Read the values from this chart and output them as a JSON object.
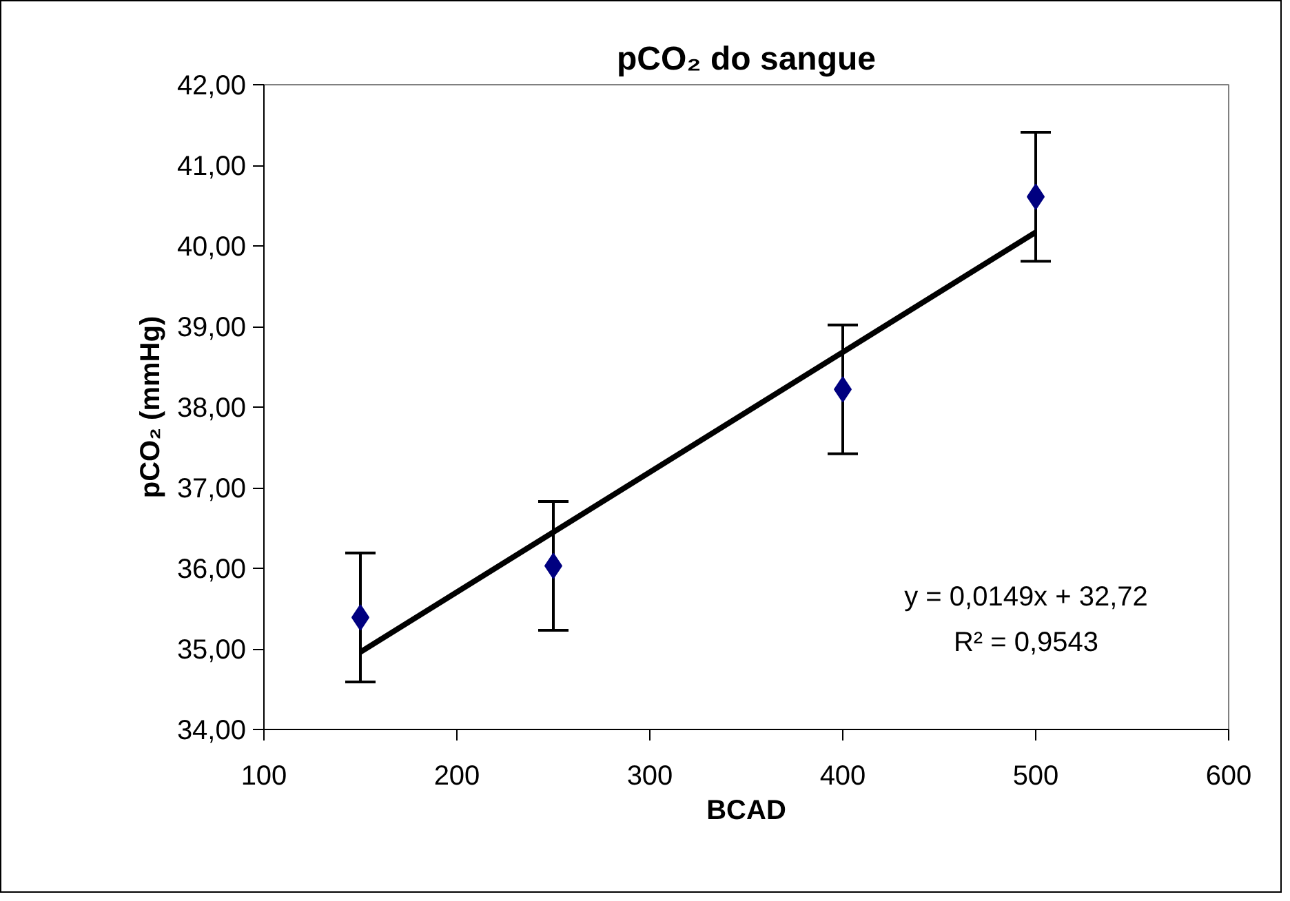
{
  "chart_data": {
    "type": "scatter",
    "title": "pCO₂ do sangue",
    "xlabel": "BCAD",
    "ylabel": "pCO₂ (mmHg)",
    "x": [
      150,
      250,
      400,
      500
    ],
    "series": [
      {
        "color": "#000080",
        "values": [
          35.39,
          36.03,
          38.22,
          40.61
        ],
        "errors": [
          0.8,
          0.8,
          0.8,
          0.8
        ],
        "marker": "diamond"
      },
      {
        "type": "line",
        "color": "#000000",
        "x": [
          150,
          500
        ],
        "values": [
          34.96,
          40.17
        ],
        "line_style": "solid"
      }
    ],
    "annotations": [
      "y = 0,0149x + 32,72",
      "R² = 0,9543"
    ],
    "xlim": [
      100,
      600
    ],
    "xticks": [
      100,
      200,
      300,
      400,
      500,
      600
    ],
    "ylim": [
      34,
      42
    ],
    "yticks": [
      {
        "value": 34,
        "label": "34,00"
      },
      {
        "value": 35,
        "label": "35,00"
      },
      {
        "value": 36,
        "label": "36,00"
      },
      {
        "value": 37,
        "label": "37,00"
      },
      {
        "value": 38,
        "label": "38,00"
      },
      {
        "value": 39,
        "label": "39,00"
      },
      {
        "value": 40,
        "label": "40,00"
      },
      {
        "value": 41,
        "label": "41,00"
      },
      {
        "value": 42,
        "label": "42,00"
      }
    ],
    "grid": false
  }
}
